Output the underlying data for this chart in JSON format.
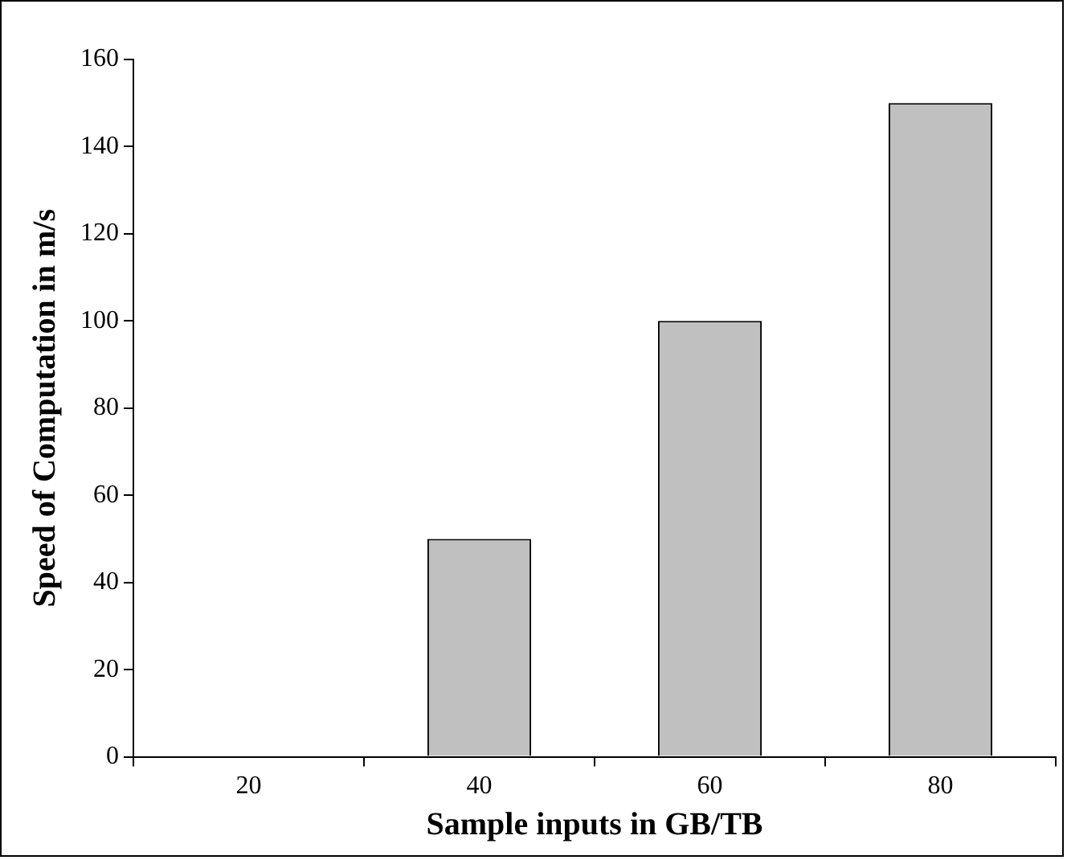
{
  "chart_data": {
    "type": "bar",
    "xlabel": "Sample inputs in GB/TB",
    "ylabel": "Speed of Computation in m/s",
    "categories": [
      "20",
      "40",
      "60",
      "80"
    ],
    "series": [
      {
        "color": "#c0c0c0",
        "values": [
          0,
          50,
          100,
          150
        ]
      }
    ],
    "ylim": [
      0,
      160
    ],
    "yticks": [
      0,
      20,
      40,
      60,
      80,
      100,
      120,
      140,
      160
    ],
    "grid": false,
    "legend": false
  }
}
